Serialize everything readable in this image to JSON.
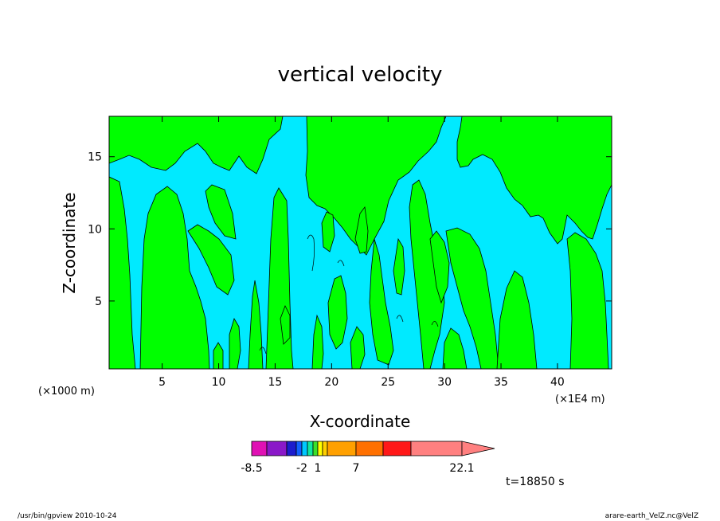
{
  "chart_data": {
    "type": "contour",
    "title": "vertical velocity",
    "xlabel": "X-coordinate",
    "ylabel": "Z-coordinate",
    "x_unit_left": "(×1000 m)",
    "x_unit_right": "(×1E4 m)",
    "xlim": [
      0.3,
      44.8
    ],
    "ylim": [
      0.3,
      17.8
    ],
    "x_ticks": [
      5,
      10,
      15,
      20,
      25,
      30,
      35,
      40
    ],
    "y_ticks": [
      5,
      10,
      15
    ],
    "colorbar": {
      "levels": [
        -8.5,
        -7,
        -5.5,
        -4,
        -2,
        -1,
        0,
        1,
        2,
        3,
        7,
        12,
        17,
        22.1
      ],
      "colors": [
        "#e011b4",
        "#8a18c8",
        "#1c1ccd",
        "#1160ff",
        "#00c8ff",
        "#10e8a0",
        "#3be02a",
        "#ffff00",
        "#ffcf00",
        "#ffa000",
        "#ff7000",
        "#ff1818",
        "#ff8080"
      ],
      "tick_labels": [
        "-8.5",
        "-2",
        "1",
        "7",
        "22.1"
      ],
      "tick_values": [
        -8.5,
        -2,
        1,
        7,
        22.1
      ],
      "extend": "max"
    },
    "background_class_color": "#00eaff",
    "positive_class_color": "#00ff00",
    "grid": false
  },
  "time_label": "t=18850 s",
  "footer_left": "/usr/bin/gpview  2010-10-24",
  "footer_right": "arare-earth_VelZ.nc@VelZ"
}
